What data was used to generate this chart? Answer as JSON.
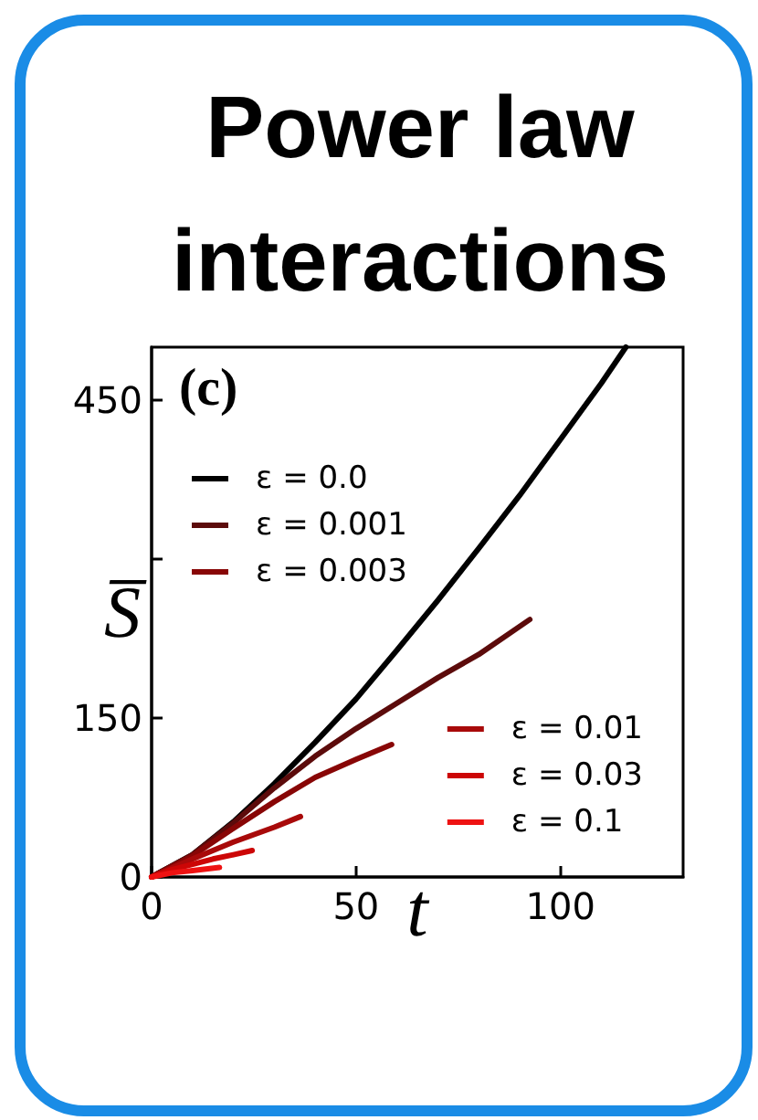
{
  "chart_data": {
    "type": "line",
    "title": "Power law interactions",
    "xlabel": "t",
    "ylabel": "S̅",
    "annotations": [
      "(c)"
    ],
    "xlim": [
      0,
      130
    ],
    "ylim": [
      0,
      500
    ],
    "xticks": [
      0,
      50,
      100
    ],
    "yticks": [
      0,
      150,
      {
        "value": 300,
        "label": null
      },
      450
    ],
    "grid": false,
    "legend": [
      "top left",
      "bottom right"
    ],
    "series": [
      {
        "name": "ε = 0.0",
        "color": "#000000",
        "x": [
          0,
          10,
          20,
          30,
          40,
          50,
          60,
          70,
          80,
          90,
          100,
          110,
          116
        ],
        "values": [
          0,
          21,
          52,
          88,
          127,
          168,
          214,
          261,
          310,
          360,
          413,
          466,
          500
        ]
      },
      {
        "name": "ε = 0.001",
        "color": "#5c0b0b",
        "x": [
          0,
          10,
          20,
          30,
          40,
          50,
          60,
          70,
          80,
          92.5
        ],
        "values": [
          0,
          21,
          51,
          84,
          114,
          140,
          164,
          188,
          210,
          243
        ]
      },
      {
        "name": "ε = 0.003",
        "color": "#880606",
        "x": [
          0,
          10,
          20,
          30,
          40,
          50,
          58.7
        ],
        "values": [
          0,
          20,
          46,
          71,
          94,
          111,
          125
        ]
      },
      {
        "name": "ε = 0.01",
        "color": "#a80a0a",
        "x": [
          0,
          10,
          20,
          30,
          36.4
        ],
        "values": [
          0,
          17,
          33,
          47,
          57
        ]
      },
      {
        "name": "ε = 0.03",
        "color": "#cc0606",
        "x": [
          0,
          5,
          10,
          15,
          20,
          24.6
        ],
        "values": [
          0,
          7,
          12,
          17,
          21,
          25
        ]
      },
      {
        "name": "ε = 0.1",
        "color": "#ee1212",
        "x": [
          0,
          5,
          10,
          16.6
        ],
        "values": [
          0,
          4,
          6,
          9
        ]
      }
    ]
  }
}
